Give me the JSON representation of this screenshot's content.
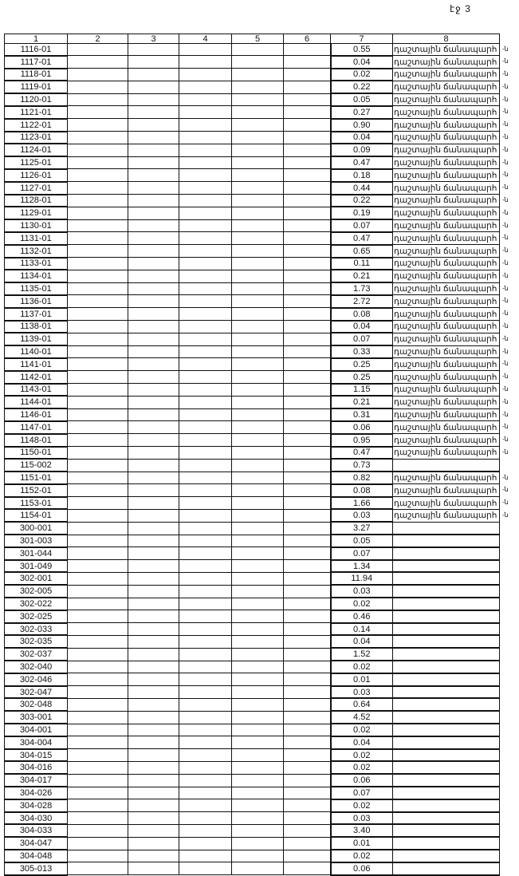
{
  "page_label": "էջ 3",
  "headers": [
    "1",
    "2",
    "3",
    "4",
    "5",
    "6",
    "7",
    "8"
  ],
  "rows": [
    {
      "c1": "1116-01",
      "c7": "0.55",
      "c8": "դաշտային ճանապարհ",
      "suffix": "-ն"
    },
    {
      "c1": "1117-01",
      "c7": "0.04",
      "c8": "դաշտային ճանապարհ",
      "suffix": "-ն"
    },
    {
      "c1": "1118-01",
      "c7": "0.02",
      "c8": "դաշտային ճանապարհ",
      "suffix": "-ն"
    },
    {
      "c1": "1119-01",
      "c7": "0.22",
      "c8": "դաշտային ճանապարհ",
      "suffix": "-ն"
    },
    {
      "c1": "1120-01",
      "c7": "0.05",
      "c8": "դաշտային ճանապարհ",
      "suffix": "-ն"
    },
    {
      "c1": "1121-01",
      "c7": "0.27",
      "c8": "դաշտային ճանապարհ",
      "suffix": "-ն"
    },
    {
      "c1": "1122-01",
      "c7": "0.90",
      "c8": "դաշտային ճանապարհ",
      "suffix": "-ն"
    },
    {
      "c1": "1123-01",
      "c7": "0.04",
      "c8": "դաշտային ճանապարհ",
      "suffix": "-ն"
    },
    {
      "c1": "1124-01",
      "c7": "0.09",
      "c8": "դաշտային ճանապարհ",
      "suffix": "-ն"
    },
    {
      "c1": "1125-01",
      "c7": "0.47",
      "c8": "դաշտային ճանապարհ",
      "suffix": "-ն"
    },
    {
      "c1": "1126-01",
      "c7": "0.18",
      "c8": "դաշտային ճանապարհ",
      "suffix": "-ն"
    },
    {
      "c1": "1127-01",
      "c7": "0.44",
      "c8": "դաշտային ճանապարհ",
      "suffix": "-ն"
    },
    {
      "c1": "1128-01",
      "c7": "0.22",
      "c8": "դաշտային ճանապարհ",
      "suffix": "-ն"
    },
    {
      "c1": "1129-01",
      "c7": "0.19",
      "c8": "դաշտային ճանապարհ",
      "suffix": "-ն"
    },
    {
      "c1": "1130-01",
      "c7": "0.07",
      "c8": "դաշտային ճանապարհ",
      "suffix": "-ն"
    },
    {
      "c1": "1131-01",
      "c7": "0.47",
      "c8": "դաշտային ճանապարհ",
      "suffix": "-ն"
    },
    {
      "c1": "1132-01",
      "c7": "0.65",
      "c8": "դաշտային ճանապարհ",
      "suffix": "-ն"
    },
    {
      "c1": "1133-01",
      "c7": "0.11",
      "c8": "դաշտային ճանապարհ",
      "suffix": "-ն"
    },
    {
      "c1": "1134-01",
      "c7": "0.21",
      "c8": "դաշտային ճանապարհ",
      "suffix": "-ն"
    },
    {
      "c1": "1135-01",
      "c7": "1.73",
      "c8": "դաշտային ճանապարհ",
      "suffix": "-ն"
    },
    {
      "c1": "1136-01",
      "c7": "2.72",
      "c8": "դաշտային ճանապարհ",
      "suffix": "-ն"
    },
    {
      "c1": "1137-01",
      "c7": "0.08",
      "c8": "դաշտային ճանապարհ",
      "suffix": "-ն"
    },
    {
      "c1": "1138-01",
      "c7": "0.04",
      "c8": "դաշտային ճանապարհ",
      "suffix": "-ն"
    },
    {
      "c1": "1139-01",
      "c7": "0.07",
      "c8": "դաշտային ճանապարհ",
      "suffix": "-ն"
    },
    {
      "c1": "1140-01",
      "c7": "0.33",
      "c8": "դաշտային ճանապարհ",
      "suffix": "-ն"
    },
    {
      "c1": "1141-01",
      "c7": "0.25",
      "c8": "դաշտային ճանապարհ",
      "suffix": "-ն"
    },
    {
      "c1": "1142-01",
      "c7": "0.25",
      "c8": "դաշտային ճանապարհ",
      "suffix": "-ն"
    },
    {
      "c1": "1143-01",
      "c7": "1.15",
      "c8": "դաշտային ճանապարհ",
      "suffix": "-ն"
    },
    {
      "c1": "1144-01",
      "c7": "0.21",
      "c8": "դաշտային ճանապարհ",
      "suffix": "-ն"
    },
    {
      "c1": "1146-01",
      "c7": "0.31",
      "c8": "դաշտային ճանապարհ",
      "suffix": "-ն"
    },
    {
      "c1": "1147-01",
      "c7": "0.06",
      "c8": "դաշտային ճանապարհ",
      "suffix": "-ն"
    },
    {
      "c1": "1148-01",
      "c7": "0.95",
      "c8": "դաշտային ճանապարհ",
      "suffix": "-ն"
    },
    {
      "c1": "1150-01",
      "c7": "0.47",
      "c8": "դաշտային ճանապարհ",
      "suffix": "-ն"
    },
    {
      "c1": "115-002",
      "c7": "0.73",
      "c8": "",
      "suffix": ""
    },
    {
      "c1": "1151-01",
      "c7": "0.82",
      "c8": "դաշտային ճանապարհ",
      "suffix": "-ն"
    },
    {
      "c1": "1152-01",
      "c7": "0.08",
      "c8": "դաշտային ճանապարհ",
      "suffix": "-ն"
    },
    {
      "c1": "1153-01",
      "c7": "1.66",
      "c8": "դաշտային ճանապարհ",
      "suffix": "-ն"
    },
    {
      "c1": "1154-01",
      "c7": "0.03",
      "c8": "դաշտային ճանապարհ",
      "suffix": "-ն"
    },
    {
      "c1": "300-001",
      "c7": "3.27",
      "c8": "",
      "suffix": ""
    },
    {
      "c1": "301-003",
      "c7": "0.05",
      "c8": "",
      "suffix": ""
    },
    {
      "c1": "301-044",
      "c7": "0.07",
      "c8": "",
      "suffix": ""
    },
    {
      "c1": "301-049",
      "c7": "1.34",
      "c8": "",
      "suffix": ""
    },
    {
      "c1": "302-001",
      "c7": "11.94",
      "c8": "",
      "suffix": ""
    },
    {
      "c1": "302-005",
      "c7": "0.03",
      "c8": "",
      "suffix": ""
    },
    {
      "c1": "302-022",
      "c7": "0.02",
      "c8": "",
      "suffix": ""
    },
    {
      "c1": "302-025",
      "c7": "0.46",
      "c8": "",
      "suffix": ""
    },
    {
      "c1": "302-033",
      "c7": "0.14",
      "c8": "",
      "suffix": ""
    },
    {
      "c1": "302-035",
      "c7": "0.04",
      "c8": "",
      "suffix": ""
    },
    {
      "c1": "302-037",
      "c7": "1.52",
      "c8": "",
      "suffix": ""
    },
    {
      "c1": "302-040",
      "c7": "0.02",
      "c8": "",
      "suffix": ""
    },
    {
      "c1": "302-046",
      "c7": "0.01",
      "c8": "",
      "suffix": ""
    },
    {
      "c1": "302-047",
      "c7": "0.03",
      "c8": "",
      "suffix": ""
    },
    {
      "c1": "302-048",
      "c7": "0.64",
      "c8": "",
      "suffix": ""
    },
    {
      "c1": "303-001",
      "c7": "4.52",
      "c8": "",
      "suffix": ""
    },
    {
      "c1": "304-001",
      "c7": "0.02",
      "c8": "",
      "suffix": ""
    },
    {
      "c1": "304-004",
      "c7": "0.04",
      "c8": "",
      "suffix": ""
    },
    {
      "c1": "304-015",
      "c7": "0.02",
      "c8": "",
      "suffix": ""
    },
    {
      "c1": "304-016",
      "c7": "0.02",
      "c8": "",
      "suffix": ""
    },
    {
      "c1": "304-017",
      "c7": "0.06",
      "c8": "",
      "suffix": ""
    },
    {
      "c1": "304-026",
      "c7": "0.07",
      "c8": "",
      "suffix": ""
    },
    {
      "c1": "304-028",
      "c7": "0.02",
      "c8": "",
      "suffix": ""
    },
    {
      "c1": "304-030",
      "c7": "0.03",
      "c8": "",
      "suffix": ""
    },
    {
      "c1": "304-033",
      "c7": "3.40",
      "c8": "",
      "suffix": ""
    },
    {
      "c1": "304-047",
      "c7": "0.01",
      "c8": "",
      "suffix": ""
    },
    {
      "c1": "304-048",
      "c7": "0.02",
      "c8": "",
      "suffix": ""
    },
    {
      "c1": "305-013",
      "c7": "0.06",
      "c8": "",
      "suffix": ""
    }
  ]
}
